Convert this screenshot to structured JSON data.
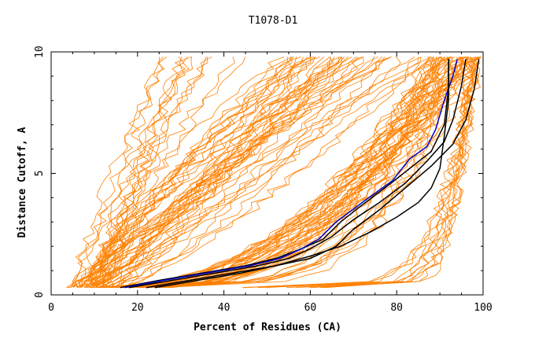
{
  "chart_data": {
    "type": "line",
    "title": "T1078-D1",
    "xlabel": "Percent of Residues (CA)",
    "ylabel": "Distance Cutoff, A",
    "xlim": [
      0,
      100
    ],
    "ylim": [
      0,
      10
    ],
    "x_ticks": [
      0,
      20,
      40,
      60,
      80,
      100
    ],
    "x_tick_labels": [
      "0",
      "20",
      "40",
      "60",
      "80",
      "100"
    ],
    "y_ticks": [
      0,
      5,
      10
    ],
    "y_tick_labels": [
      "0",
      "5",
      "10"
    ],
    "grid": false,
    "colors": {
      "background_series": "#ff8000",
      "highlight_blue": "#0000cc",
      "highlight_black": "#000000",
      "axis": "#000000"
    },
    "background_series_note_count": 120,
    "series": [
      {
        "color": "#000000",
        "x": [
          16,
          25,
          35,
          45,
          52,
          58,
          63,
          67,
          72,
          78,
          83,
          88,
          91,
          92,
          92
        ],
        "y": [
          0.3,
          0.6,
          0.9,
          1.2,
          1.5,
          1.9,
          2.3,
          3.0,
          3.7,
          4.5,
          5.2,
          5.9,
          7.0,
          8.5,
          9.7
        ]
      },
      {
        "color": "#0000cc",
        "x": [
          17,
          26,
          36,
          46,
          53,
          58,
          62,
          66,
          72,
          79,
          83,
          87,
          89,
          91,
          93,
          94
        ],
        "y": [
          0.3,
          0.6,
          0.9,
          1.2,
          1.5,
          1.9,
          2.3,
          3.0,
          3.8,
          4.7,
          5.6,
          6.1,
          6.8,
          8.0,
          9.0,
          9.7
        ]
      },
      {
        "color": "#000000",
        "x": [
          18,
          28,
          38,
          48,
          55,
          60,
          65,
          70,
          76,
          82,
          87,
          91,
          93,
          95,
          96
        ],
        "y": [
          0.3,
          0.6,
          0.9,
          1.2,
          1.5,
          1.9,
          2.4,
          3.1,
          3.8,
          4.6,
          5.5,
          6.3,
          7.2,
          8.6,
          9.7
        ]
      },
      {
        "color": "#000000",
        "x": [
          24,
          34,
          44,
          52,
          60,
          67,
          74,
          80,
          85,
          88,
          90,
          91,
          92,
          92
        ],
        "y": [
          0.3,
          0.6,
          0.9,
          1.2,
          1.6,
          2.0,
          2.6,
          3.2,
          3.8,
          4.4,
          5.2,
          6.5,
          8.0,
          9.7
        ]
      },
      {
        "color": "#000000",
        "x": [
          22,
          32,
          42,
          52,
          60,
          66,
          70,
          76,
          82,
          88,
          93,
          96,
          98,
          99
        ],
        "y": [
          0.3,
          0.6,
          0.9,
          1.2,
          1.5,
          2.0,
          2.7,
          3.5,
          4.4,
          5.3,
          6.2,
          7.2,
          8.5,
          9.7
        ]
      }
    ]
  }
}
